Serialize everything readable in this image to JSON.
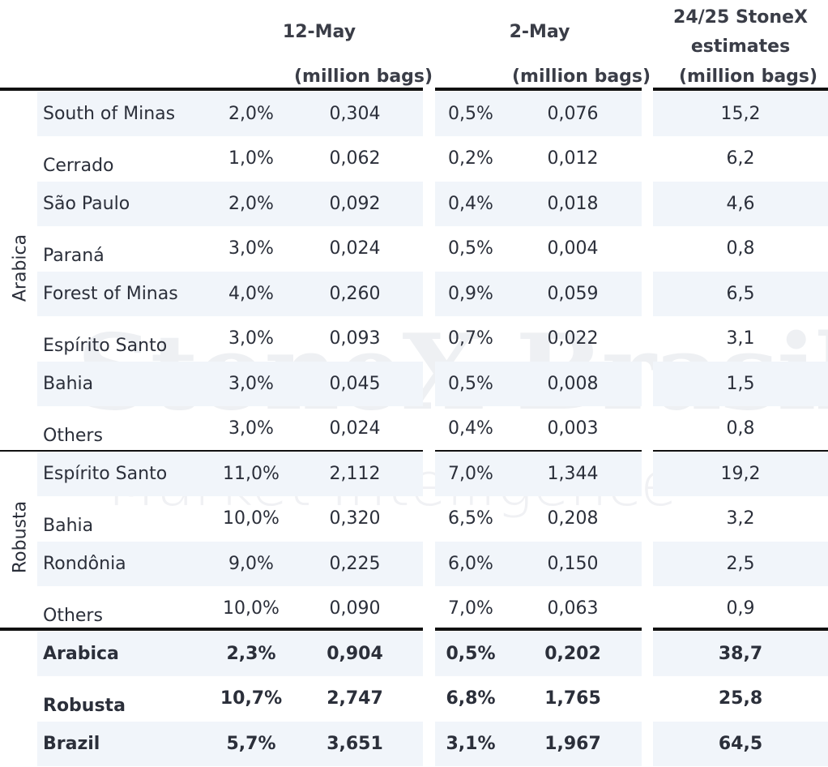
{
  "watermark": {
    "brand": "StoneX Brasil",
    "tagline": "Market Intelligence"
  },
  "headers": {
    "col1_title": "12-May",
    "col1_unit": "(million bags)",
    "col2_title": "2-May",
    "col2_unit": "(million bags)",
    "col3_title_line1": "24/25 StoneX",
    "col3_title_line2": "estimates",
    "col3_unit": "(million bags)"
  },
  "groups": {
    "arabica_label": "Arabica",
    "robusta_label": "Robusta"
  },
  "rows": [
    {
      "name": "South of Minas",
      "p12": "2,0%",
      "v12": "0,304",
      "p2": "0,5%",
      "v2": "0,076",
      "est": "15,2"
    },
    {
      "name": "Cerrado",
      "p12": "1,0%",
      "v12": "0,062",
      "p2": "0,2%",
      "v2": "0,012",
      "est": "6,2"
    },
    {
      "name": "São Paulo",
      "p12": "2,0%",
      "v12": "0,092",
      "p2": "0,4%",
      "v2": "0,018",
      "est": "4,6"
    },
    {
      "name": "Paraná",
      "p12": "3,0%",
      "v12": "0,024",
      "p2": "0,5%",
      "v2": "0,004",
      "est": "0,8"
    },
    {
      "name": "Forest of Minas",
      "p12": "4,0%",
      "v12": "0,260",
      "p2": "0,9%",
      "v2": "0,059",
      "est": "6,5"
    },
    {
      "name": "Espírito Santo",
      "p12": "3,0%",
      "v12": "0,093",
      "p2": "0,7%",
      "v2": "0,022",
      "est": "3,1"
    },
    {
      "name": "Bahia",
      "p12": "3,0%",
      "v12": "0,045",
      "p2": "0,5%",
      "v2": "0,008",
      "est": "1,5"
    },
    {
      "name": "Others",
      "p12": "3,0%",
      "v12": "0,024",
      "p2": "0,4%",
      "v2": "0,003",
      "est": "0,8"
    },
    {
      "name": "Espírito Santo",
      "p12": "11,0%",
      "v12": "2,112",
      "p2": "7,0%",
      "v2": "1,344",
      "est": "19,2"
    },
    {
      "name": "Bahia",
      "p12": "10,0%",
      "v12": "0,320",
      "p2": "6,5%",
      "v2": "0,208",
      "est": "3,2"
    },
    {
      "name": "Rondônia",
      "p12": "9,0%",
      "v12": "0,225",
      "p2": "6,0%",
      "v2": "0,150",
      "est": "2,5"
    },
    {
      "name": "Others",
      "p12": "10,0%",
      "v12": "0,090",
      "p2": "7,0%",
      "v2": "0,063",
      "est": "0,9"
    }
  ],
  "totals": [
    {
      "name": "Arabica",
      "p12": "2,3%",
      "v12": "0,904",
      "p2": "0,5%",
      "v2": "0,202",
      "est": "38,7"
    },
    {
      "name": "Robusta",
      "p12": "10,7%",
      "v12": "2,747",
      "p2": "6,8%",
      "v2": "1,765",
      "est": "25,8"
    },
    {
      "name": "Brazil",
      "p12": "5,7%",
      "v12": "3,651",
      "p2": "3,1%",
      "v2": "1,967",
      "est": "64,5"
    }
  ]
}
